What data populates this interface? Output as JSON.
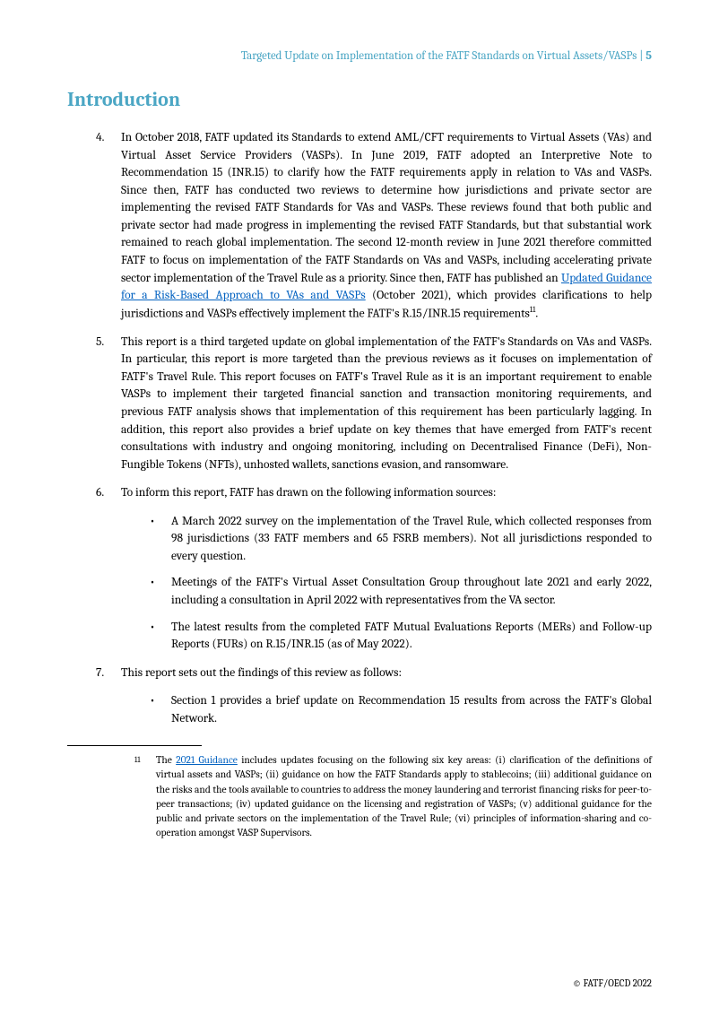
{
  "colors": {
    "accent": "#4ba6c4",
    "link": "#0563c1",
    "text": "#000000",
    "background": "#ffffff"
  },
  "header": {
    "title": "Targeted Update on Implementation of the FATF Standards on Virtual Assets/VASPs",
    "page": "5"
  },
  "heading": "Introduction",
  "paragraphs": [
    {
      "num": "4.",
      "text_before_link": "In October 2018, FATF updated its Standards to extend AML/CFT requirements to Virtual Assets (VAs) and Virtual Asset Service Providers (VASPs). In June 2019, FATF adopted an Interpretive Note to Recommendation 15 (INR.15) to clarify how the FATF requirements apply in relation to VAs and VASPs. Since then, FATF has conducted two reviews to determine how jurisdictions and private sector are implementing the revised FATF Standards for VAs and VASPs. These reviews found that both public and private sector had made progress in implementing the revised FATF Standards, but that substantial work remained to reach global implementation. The second 12-month review in June 2021 therefore committed FATF to focus on implementation of the FATF Standards on VAs and VASPs, including accelerating private sector implementation of the Travel Rule as a priority. Since then, FATF has published an ",
      "link_text": "Updated Guidance for a Risk-Based Approach to VAs and VASPs",
      "text_after_link": " (October 2021), which provides clarifications to help jurisdictions and VASPs effectively implement the FATF's R.15/INR.15 requirements",
      "sup": "11",
      "text_end": "."
    },
    {
      "num": "5.",
      "text": "This report is a third targeted update on global implementation of the FATF's Standards on VAs and VASPs. In particular, this report is more targeted than the previous reviews as it focuses on implementation of FATF's Travel Rule. This report focuses on FATF's Travel Rule as it is an important requirement to enable VASPs to implement their targeted financial sanction and transaction monitoring requirements, and previous FATF analysis shows that implementation of this requirement has been particularly lagging. In addition, this report also provides a brief update on key themes that have emerged from FATF's recent consultations with industry and ongoing monitoring, including on Decentralised Finance (DeFi), Non-Fungible Tokens (NFTs), unhosted wallets, sanctions evasion, and ransomware."
    },
    {
      "num": "6.",
      "text": "To inform this report, FATF has drawn on the following information sources:"
    }
  ],
  "bullets_6": [
    "A March 2022 survey on the implementation of the Travel Rule, which collected responses from 98 jurisdictions (33 FATF members and 65 FSRB members). Not all jurisdictions responded to every question.",
    "Meetings of the FATF's Virtual Asset Consultation Group throughout late 2021 and early 2022, including a consultation in April 2022 with representatives from the VA sector.",
    "The latest results from the completed FATF Mutual Evaluations Reports (MERs) and Follow-up Reports (FURs) on R.15/INR.15 (as of May 2022)."
  ],
  "para_7": {
    "num": "7.",
    "text": "This report sets out the findings of this review as follows:"
  },
  "bullets_7": [
    "Section 1 provides a brief update on Recommendation 15 results from across the FATF's Global Network."
  ],
  "footnote": {
    "num": "11",
    "before_link": "The ",
    "link_text": "2021 Guidance",
    "after_link": " includes updates focusing on the following six key areas: (i) clarification of the definitions of virtual assets and VASPs; (ii) guidance on how the FATF Standards apply to stablecoins; (iii) additional guidance on the risks and the tools available to countries to address the money laundering and terrorist financing risks for peer-to-peer transactions; (iv) updated guidance on the licensing and registration of VASPs; (v) additional guidance for the public and private sectors on the implementation of the Travel Rule; (vi) principles of information-sharing and co-operation amongst VASP Supervisors."
  },
  "footer": "© FATF/OECD 2022"
}
